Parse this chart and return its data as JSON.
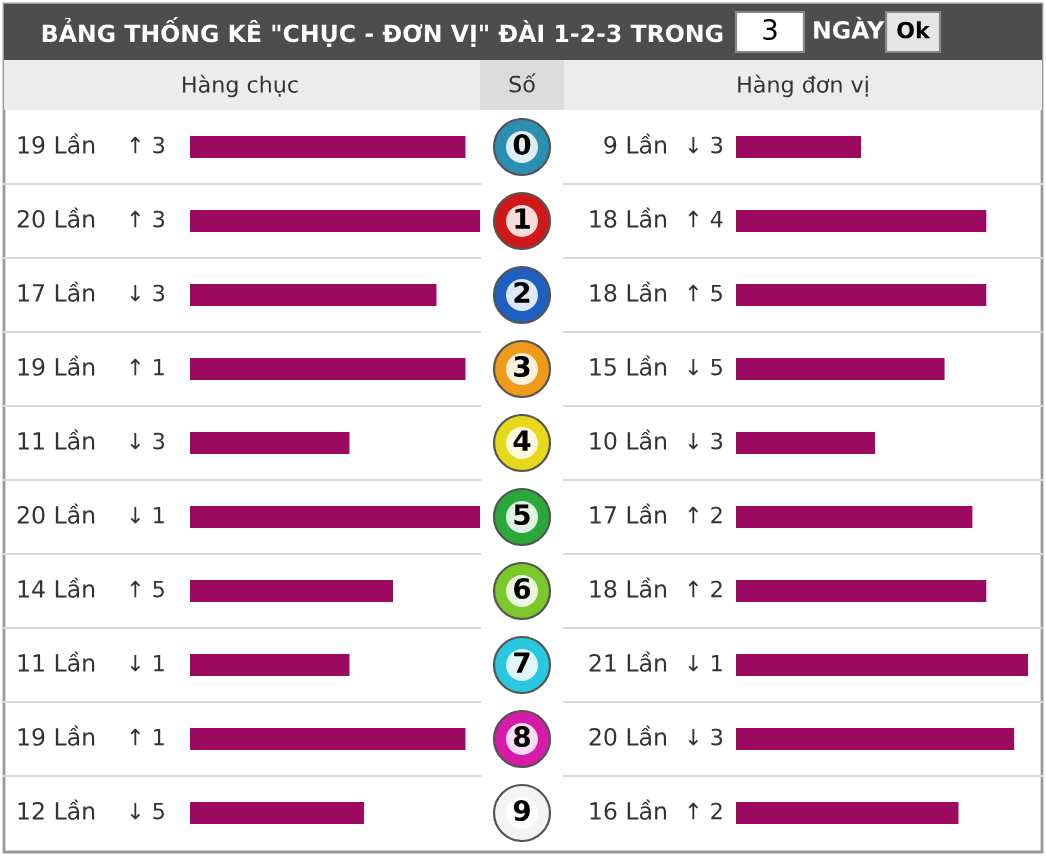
{
  "chart_data": [
    {
      "type": "other",
      "title": "BẢNG THỐNG KÊ \"CHỤC - ĐƠN VỊ\" ĐÀI 1-2-3 TRONG",
      "annotations": [
        "3",
        "NGÀY",
        "Ok"
      ]
    },
    {
      "type": "bar",
      "orientation": "horizontal",
      "title": "Hàng chục",
      "ylabel": "Số",
      "categories": [
        "0",
        "1",
        "2",
        "3",
        "4",
        "5",
        "6",
        "7",
        "8",
        "9"
      ],
      "values": [
        19,
        20,
        17,
        19,
        11,
        20,
        14,
        11,
        19,
        12
      ],
      "color": "#9b0a5e",
      "value_labels": [
        "19 Lần",
        "20 Lần",
        "17 Lần",
        "19 Lần",
        "11 Lần",
        "20 Lần",
        "14 Lần",
        "11 Lần",
        "19 Lần",
        "12 Lần"
      ],
      "annotations": [
        "↑ 3",
        "↑ 3",
        "↓ 3",
        "↑ 1",
        "↓ 3",
        "↓ 1",
        "↑ 5",
        "↓ 1",
        "↑ 1",
        "↓ 5"
      ]
    },
    {
      "type": "bar",
      "orientation": "horizontal",
      "title": "Hàng đơn vị",
      "categories": [
        null,
        null,
        null,
        null,
        null,
        null,
        null,
        null,
        null,
        null
      ],
      "values": [
        9,
        18,
        18,
        15,
        10,
        17,
        18,
        21,
        20,
        16
      ],
      "color": "#9b0a5e",
      "value_labels": [
        "9 Lần",
        "18 Lần",
        "18 Lần",
        "15 Lần",
        "10 Lần",
        "17 Lần",
        "18 Lần",
        "21 Lần",
        "20 Lần",
        "16 Lần"
      ],
      "annotations": [
        "↓ 3",
        "↑ 4",
        "↑ 5",
        "↓ 5",
        "↓ 3",
        "↑ 2",
        "↑ 2",
        "↓ 1",
        "↓ 3",
        "↑ 2"
      ]
    }
  ]
}
